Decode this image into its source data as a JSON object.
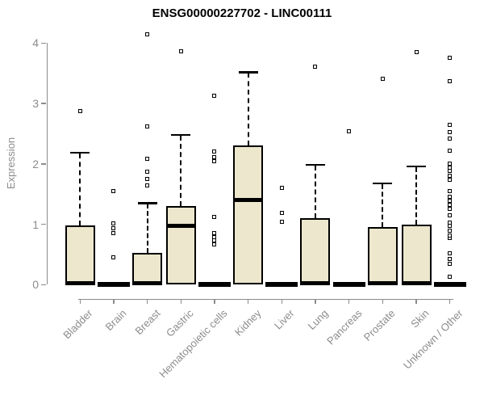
{
  "page": {
    "background": "#ffffff"
  },
  "chart_data": {
    "type": "boxplot",
    "title": "ENSG00000227702 - LINC00111",
    "ylabel": "Expression",
    "xlabel": "",
    "ylim": [
      0,
      4
    ],
    "yticks": [
      "0",
      "1",
      "2",
      "3",
      "4"
    ],
    "grid": false,
    "legend": "none",
    "colors": {
      "box_fill": "#ece7cd",
      "box_border": "#000000",
      "median": "#000000",
      "axis": "#8c8c8c",
      "tick_label": "#8c8c8c",
      "title": "#000000"
    },
    "categories": [
      "Bladder",
      "Brain",
      "Breast",
      "Gastric",
      "Hematopoietic cells",
      "Kidney",
      "Liver",
      "Lung",
      "Pancreas",
      "Prostate",
      "Skin",
      "Unknown / Other"
    ],
    "series": [
      {
        "name": "Bladder",
        "q1": 0,
        "median": 0.02,
        "q3": 0.98,
        "whisker_low": 0,
        "whisker_high": 2.19,
        "outliers": [
          2.87
        ]
      },
      {
        "name": "Brain",
        "q1": 0,
        "median": 0.02,
        "q3": 0.02,
        "whisker_low": 0,
        "whisker_high": 0.02,
        "outliers": [
          0.45,
          0.85,
          0.94,
          1.01,
          1.55
        ]
      },
      {
        "name": "Breast",
        "q1": 0,
        "median": 0.02,
        "q3": 0.53,
        "whisker_low": 0,
        "whisker_high": 1.35,
        "outliers": [
          1.64,
          1.75,
          1.87,
          2.08,
          2.62,
          4.14
        ]
      },
      {
        "name": "Gastric",
        "q1": 0,
        "median": 0.97,
        "q3": 1.3,
        "whisker_low": 0,
        "whisker_high": 2.48,
        "outliers": [
          3.87
        ]
      },
      {
        "name": "Hematopoietic cells",
        "q1": 0,
        "median": 0.02,
        "q3": 0.02,
        "whisker_low": 0,
        "whisker_high": 0.02,
        "outliers": [
          0.66,
          0.73,
          0.79,
          0.85,
          1.12,
          2.05,
          2.11,
          2.21,
          3.13
        ]
      },
      {
        "name": "Kidney",
        "q1": 0,
        "median": 1.4,
        "q3": 2.3,
        "whisker_low": 0,
        "whisker_high": 3.52,
        "outliers": []
      },
      {
        "name": "Liver",
        "q1": 0,
        "median": 0.02,
        "q3": 0.02,
        "whisker_low": 0,
        "whisker_high": 0.02,
        "outliers": [
          1.04,
          1.19,
          1.6
        ]
      },
      {
        "name": "Lung",
        "q1": 0,
        "median": 0.02,
        "q3": 1.1,
        "whisker_low": 0,
        "whisker_high": 1.99,
        "outliers": [
          3.61
        ]
      },
      {
        "name": "Pancreas",
        "q1": 0,
        "median": 0.02,
        "q3": 0.02,
        "whisker_low": 0,
        "whisker_high": 0.02,
        "outliers": [
          2.54
        ]
      },
      {
        "name": "Prostate",
        "q1": 0,
        "median": 0.02,
        "q3": 0.96,
        "whisker_low": 0,
        "whisker_high": 1.68,
        "outliers": [
          3.41
        ]
      },
      {
        "name": "Skin",
        "q1": 0,
        "median": 0.02,
        "q3": 1.0,
        "whisker_low": 0,
        "whisker_high": 1.96,
        "outliers": [
          3.85
        ]
      },
      {
        "name": "Unknown / Other",
        "q1": 0,
        "median": 0.02,
        "q3": 0.02,
        "whisker_low": 0,
        "whisker_high": 0.02,
        "outliers": [
          0.13,
          0.34,
          0.43,
          0.52,
          0.77,
          0.81,
          0.9,
          0.97,
          1.03,
          1.15,
          1.26,
          1.32,
          1.39,
          1.46,
          1.55,
          1.73,
          1.81,
          1.88,
          1.94,
          2.01,
          2.22,
          2.42,
          2.52,
          2.65,
          3.37,
          3.76
        ]
      }
    ]
  }
}
